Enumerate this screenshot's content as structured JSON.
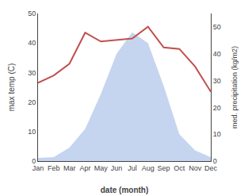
{
  "chart_data": {
    "type": "line",
    "categories": [
      "Jan",
      "Feb",
      "Mar",
      "Apr",
      "May",
      "Jun",
      "Jul",
      "Aug",
      "Sep",
      "Oct",
      "Nov",
      "Dec"
    ],
    "series": [
      {
        "type": "area",
        "color": "#c5d5f0",
        "axis": "y2",
        "values": [
          1.2,
          1.5,
          5.0,
          12.0,
          25.0,
          40.0,
          48.0,
          44.0,
          28.0,
          10.0,
          4.0,
          1.5
        ]
      },
      {
        "type": "line",
        "color": "#c0504d",
        "values": [
          26.5,
          29.0,
          33.0,
          43.5,
          40.5,
          41.0,
          41.5,
          45.5,
          38.5,
          38.0,
          32.0,
          23.5
        ]
      }
    ],
    "xlabel": "date (month)",
    "ylabel": "max temp (C)",
    "y2label": "med. precipitation (kg/m2)",
    "ylim": [
      0,
      50
    ],
    "yticks": [
      0,
      10,
      20,
      30,
      40,
      50
    ],
    "y2lim": [
      0,
      55
    ],
    "y2ticks": [
      0,
      10,
      20,
      30,
      40,
      50
    ],
    "grid": false
  }
}
